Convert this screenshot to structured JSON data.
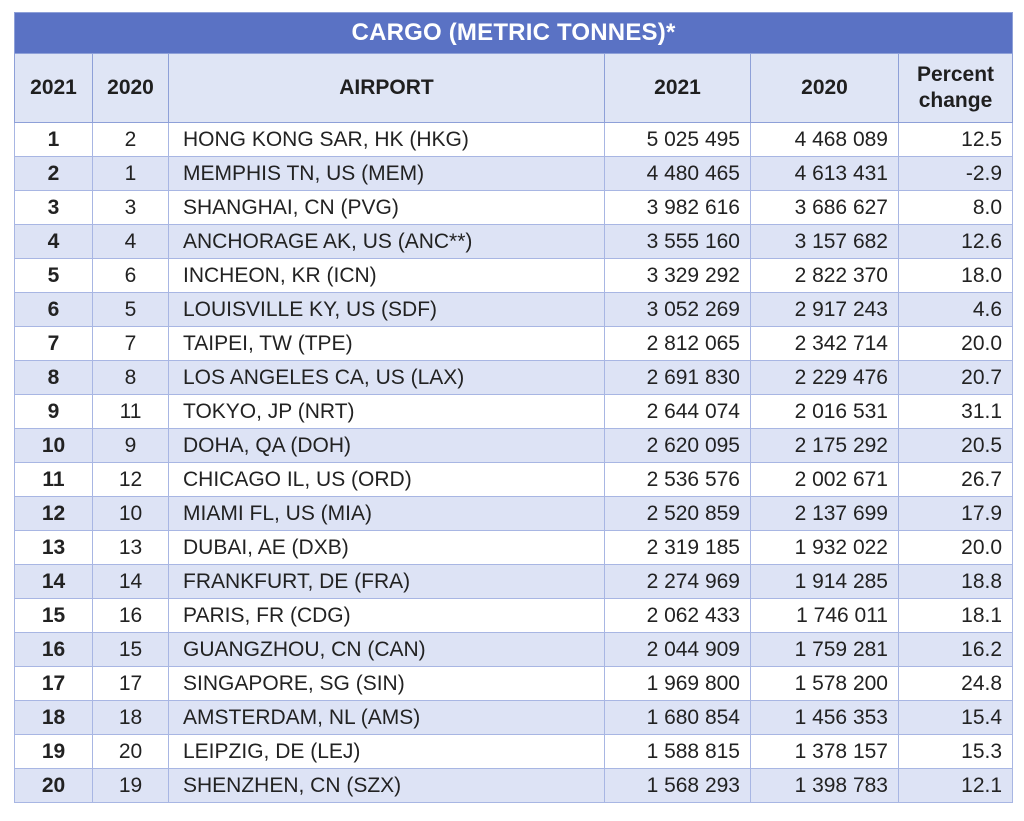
{
  "chart_data": {
    "type": "table",
    "title": "CARGO (METRIC TONNES)*",
    "columns": [
      "2021",
      "2020",
      "AIRPORT",
      "2021",
      "2020",
      "Percent change"
    ],
    "rows": [
      {
        "rank_2021": "1",
        "rank_2020": "2",
        "airport": "HONG KONG SAR, HK (HKG)",
        "cargo_2021": "5 025 495",
        "cargo_2020": "4 468 089",
        "pct_change": "12.5"
      },
      {
        "rank_2021": "2",
        "rank_2020": "1",
        "airport": "MEMPHIS TN, US (MEM)",
        "cargo_2021": "4 480 465",
        "cargo_2020": "4 613 431",
        "pct_change": "-2.9"
      },
      {
        "rank_2021": "3",
        "rank_2020": "3",
        "airport": "SHANGHAI, CN (PVG)",
        "cargo_2021": "3 982 616",
        "cargo_2020": "3 686 627",
        "pct_change": "8.0"
      },
      {
        "rank_2021": "4",
        "rank_2020": "4",
        "airport": "ANCHORAGE AK, US (ANC**)",
        "cargo_2021": "3 555 160",
        "cargo_2020": "3 157 682",
        "pct_change": "12.6"
      },
      {
        "rank_2021": "5",
        "rank_2020": "6",
        "airport": "INCHEON, KR (ICN)",
        "cargo_2021": "3 329 292",
        "cargo_2020": "2 822 370",
        "pct_change": "18.0"
      },
      {
        "rank_2021": "6",
        "rank_2020": "5",
        "airport": "LOUISVILLE KY, US (SDF)",
        "cargo_2021": "3 052 269",
        "cargo_2020": "2 917 243",
        "pct_change": "4.6"
      },
      {
        "rank_2021": "7",
        "rank_2020": "7",
        "airport": "TAIPEI, TW (TPE)",
        "cargo_2021": "2 812 065",
        "cargo_2020": "2 342 714",
        "pct_change": "20.0"
      },
      {
        "rank_2021": "8",
        "rank_2020": "8",
        "airport": "LOS ANGELES CA, US (LAX)",
        "cargo_2021": "2 691 830",
        "cargo_2020": "2 229 476",
        "pct_change": "20.7"
      },
      {
        "rank_2021": "9",
        "rank_2020": "11",
        "airport": "TOKYO, JP (NRT)",
        "cargo_2021": "2 644 074",
        "cargo_2020": "2 016 531",
        "pct_change": "31.1"
      },
      {
        "rank_2021": "10",
        "rank_2020": "9",
        "airport": "DOHA, QA (DOH)",
        "cargo_2021": "2 620 095",
        "cargo_2020": "2 175 292",
        "pct_change": "20.5"
      },
      {
        "rank_2021": "11",
        "rank_2020": "12",
        "airport": "CHICAGO IL, US (ORD)",
        "cargo_2021": "2 536 576",
        "cargo_2020": "2 002 671",
        "pct_change": "26.7"
      },
      {
        "rank_2021": "12",
        "rank_2020": "10",
        "airport": "MIAMI FL, US (MIA)",
        "cargo_2021": "2 520 859",
        "cargo_2020": "2 137 699",
        "pct_change": "17.9"
      },
      {
        "rank_2021": "13",
        "rank_2020": "13",
        "airport": "DUBAI, AE (DXB)",
        "cargo_2021": "2 319 185",
        "cargo_2020": "1 932 022",
        "pct_change": "20.0"
      },
      {
        "rank_2021": "14",
        "rank_2020": "14",
        "airport": "FRANKFURT, DE (FRA)",
        "cargo_2021": "2 274 969",
        "cargo_2020": "1 914 285",
        "pct_change": "18.8"
      },
      {
        "rank_2021": "15",
        "rank_2020": "16",
        "airport": "PARIS, FR (CDG)",
        "cargo_2021": "2 062 433",
        "cargo_2020": "1 746 011",
        "pct_change": "18.1"
      },
      {
        "rank_2021": "16",
        "rank_2020": "15",
        "airport": "GUANGZHOU, CN (CAN)",
        "cargo_2021": "2 044 909",
        "cargo_2020": "1 759 281",
        "pct_change": "16.2"
      },
      {
        "rank_2021": "17",
        "rank_2020": "17",
        "airport": "SINGAPORE, SG (SIN)",
        "cargo_2021": "1 969 800",
        "cargo_2020": "1 578 200",
        "pct_change": "24.8"
      },
      {
        "rank_2021": "18",
        "rank_2020": "18",
        "airport": "AMSTERDAM, NL (AMS)",
        "cargo_2021": "1 680 854",
        "cargo_2020": "1 456 353",
        "pct_change": "15.4"
      },
      {
        "rank_2021": "19",
        "rank_2020": "20",
        "airport": "LEIPZIG, DE (LEJ)",
        "cargo_2021": "1 588 815",
        "cargo_2020": "1 378 157",
        "pct_change": "15.3"
      },
      {
        "rank_2021": "20",
        "rank_2020": "19",
        "airport": "SHENZHEN, CN (SZX)",
        "cargo_2021": "1 568 293",
        "cargo_2020": "1 398 783",
        "pct_change": "12.1"
      }
    ]
  },
  "colors": {
    "title_bg": "#5a72c4",
    "header_bg": "#dfe5f5",
    "stripe_bg": "#dde3f5",
    "border": "#a8b6e3"
  }
}
